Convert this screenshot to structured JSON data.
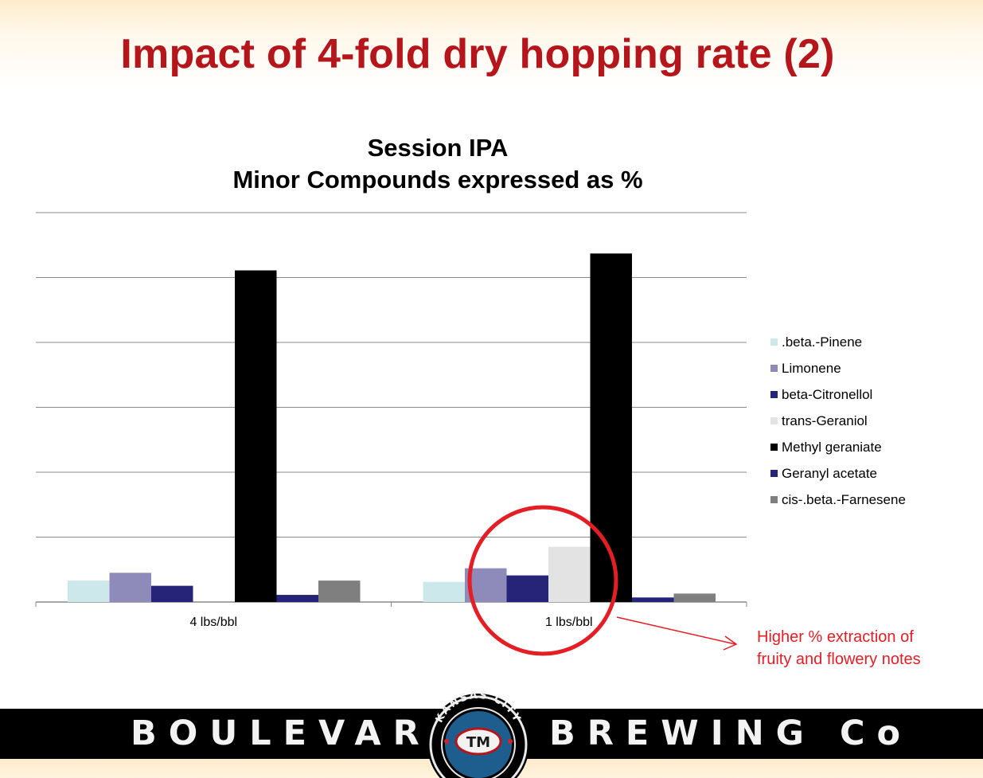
{
  "slide": {
    "title": "Impact of 4-fold dry hopping rate (2)"
  },
  "chart_data": {
    "type": "bar",
    "title": [
      "Session IPA",
      "Minor Compounds expressed as %"
    ],
    "categories": [
      "4 lbs/bbl",
      "1 lbs/bbl"
    ],
    "ylim": [
      0,
      6
    ],
    "grid": true,
    "legend_position": "right",
    "series": [
      {
        "name": ".beta.-Pinene",
        "color": "#cde8ea",
        "values": [
          0.33,
          0.31
        ]
      },
      {
        "name": "Limonene",
        "color": "#8e8bba",
        "values": [
          0.45,
          0.52
        ]
      },
      {
        "name": "beta-Citronellol",
        "color": "#262478",
        "values": [
          0.25,
          0.41
        ]
      },
      {
        "name": "trans-Geraniol",
        "color": "#e3e3e3",
        "values": [
          0.0,
          0.85
        ]
      },
      {
        "name": "Methyl geraniate",
        "color": "#000000",
        "values": [
          5.11,
          5.37
        ]
      },
      {
        "name": "Geranyl acetate",
        "color": "#262478",
        "values": [
          0.11,
          0.07
        ]
      },
      {
        "name": "cis-.beta.-Farnesene",
        "color": "#7f7f7f",
        "values": [
          0.33,
          0.13
        ]
      }
    ]
  },
  "annotation": {
    "lines": [
      "Higher % extraction of",
      "fruity and flowery notes"
    ],
    "color": "#e31e24"
  },
  "footer": {
    "brand_left": "BOULEVARD",
    "brand_right": "BREWING Co",
    "logo_text": "KANSAS CITY",
    "logo_mark": "TM"
  }
}
